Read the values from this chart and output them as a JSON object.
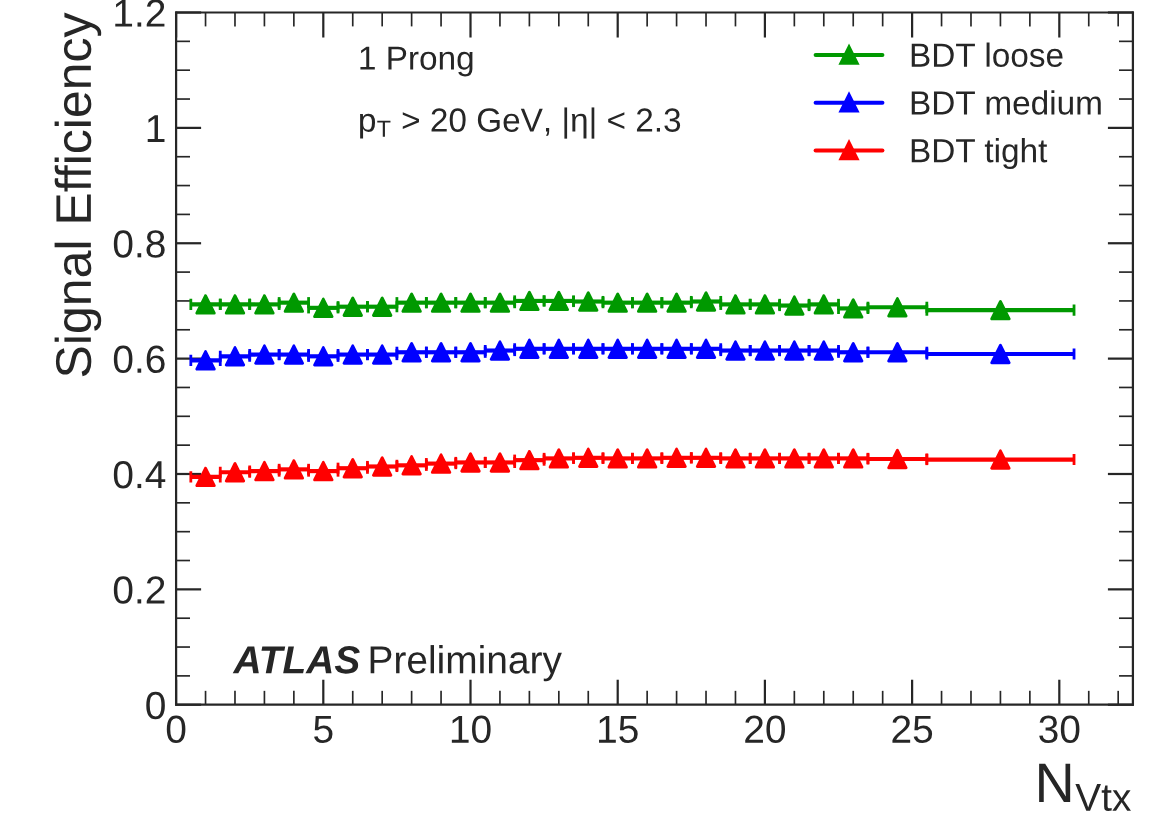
{
  "chart_data": {
    "type": "scatter",
    "xlabel": "N$_{Vtx}$",
    "ylabel": "Signal Efficiency",
    "x": [
      1,
      2,
      3,
      4,
      5,
      6,
      7,
      8,
      9,
      10,
      11,
      12,
      13,
      14,
      15,
      16,
      17,
      18,
      19,
      20,
      21,
      22,
      23,
      24.5,
      28
    ],
    "series": [
      {
        "name": "BDT loose",
        "color": "#009900",
        "values": [
          0.694,
          0.694,
          0.694,
          0.697,
          0.688,
          0.69,
          0.69,
          0.697,
          0.697,
          0.697,
          0.697,
          0.7,
          0.7,
          0.699,
          0.697,
          0.697,
          0.697,
          0.699,
          0.694,
          0.694,
          0.692,
          0.694,
          0.687,
          0.689,
          0.684
        ],
        "xerrors": [
          0.5,
          0.5,
          0.5,
          0.5,
          0.5,
          0.5,
          0.5,
          0.5,
          0.5,
          0.5,
          0.5,
          0.5,
          0.5,
          0.5,
          0.5,
          0.5,
          0.5,
          0.5,
          0.5,
          0.5,
          0.5,
          0.5,
          0.5,
          1,
          2.5
        ]
      },
      {
        "name": "BDT medium",
        "color": "#0000ff",
        "values": [
          0.597,
          0.604,
          0.607,
          0.607,
          0.604,
          0.607,
          0.607,
          0.611,
          0.611,
          0.611,
          0.614,
          0.617,
          0.617,
          0.617,
          0.617,
          0.617,
          0.617,
          0.617,
          0.614,
          0.614,
          0.614,
          0.614,
          0.611,
          0.611,
          0.608
        ],
        "xerrors": [
          0.5,
          0.5,
          0.5,
          0.5,
          0.5,
          0.5,
          0.5,
          0.5,
          0.5,
          0.5,
          0.5,
          0.5,
          0.5,
          0.5,
          0.5,
          0.5,
          0.5,
          0.5,
          0.5,
          0.5,
          0.5,
          0.5,
          0.5,
          1,
          2.5
        ]
      },
      {
        "name": "BDT tight",
        "color": "#ff0000",
        "values": [
          0.395,
          0.403,
          0.405,
          0.408,
          0.405,
          0.41,
          0.413,
          0.415,
          0.418,
          0.42,
          0.42,
          0.424,
          0.427,
          0.428,
          0.427,
          0.427,
          0.428,
          0.428,
          0.427,
          0.427,
          0.427,
          0.427,
          0.427,
          0.426,
          0.425
        ],
        "xerrors": [
          0.5,
          0.5,
          0.5,
          0.5,
          0.5,
          0.5,
          0.5,
          0.5,
          0.5,
          0.5,
          0.5,
          0.5,
          0.5,
          0.5,
          0.5,
          0.5,
          0.5,
          0.5,
          0.5,
          0.5,
          0.5,
          0.5,
          0.5,
          1,
          2.5
        ]
      }
    ],
    "xlim": [
      0,
      32.5
    ],
    "xticks": [
      0,
      5,
      10,
      15,
      20,
      25,
      30
    ],
    "ylim": [
      0,
      1.2
    ],
    "yticks": [
      0,
      0.2,
      0.4,
      0.6,
      0.8,
      1,
      1.2
    ],
    "marker": "triangle",
    "grid": false,
    "legend": "top right",
    "annotations": [
      "1 Prong",
      "p$_{T}$ > 20 GeV, |η| < 2.3",
      "ATLAS",
      "Preliminary"
    ]
  }
}
